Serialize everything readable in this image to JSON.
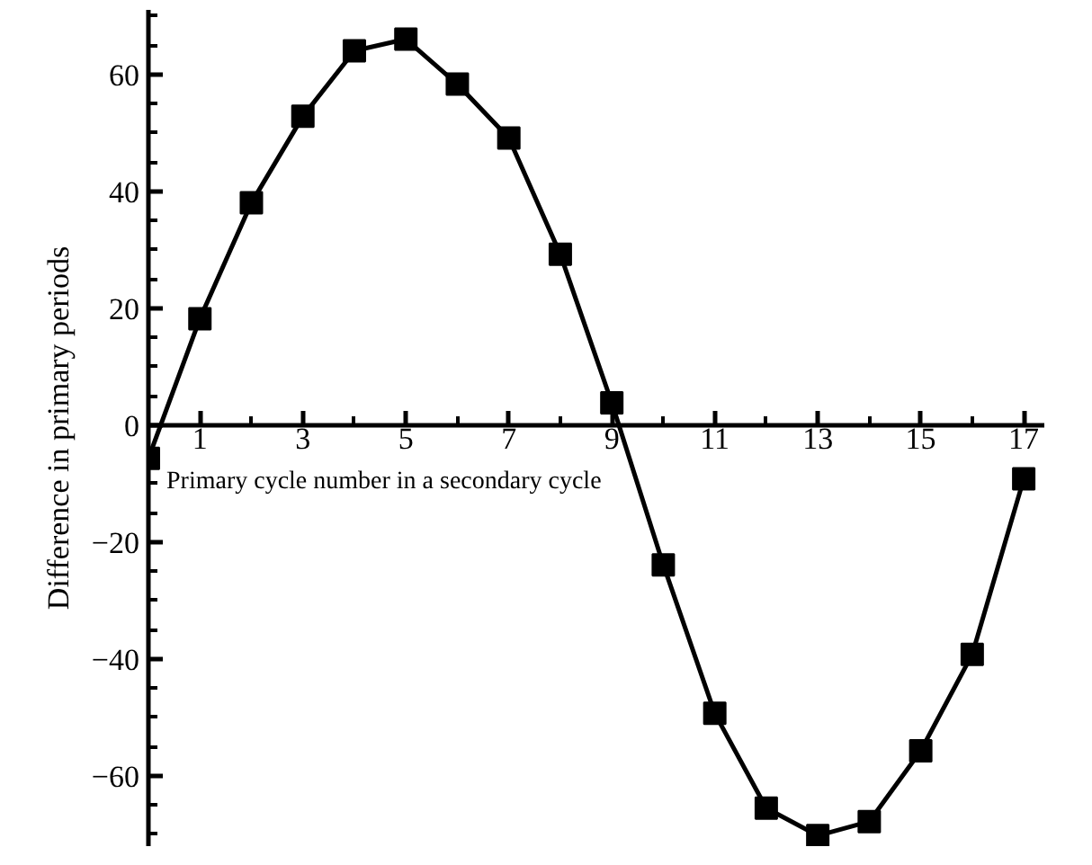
{
  "chart_data": {
    "type": "line",
    "xlabel": "Primary cycle number in a secondary cycle",
    "ylabel": "Difference in primary periods",
    "x": [
      0,
      1,
      2,
      3,
      4,
      5,
      6,
      7,
      8,
      9,
      10,
      11,
      12,
      13,
      14,
      15,
      16,
      17
    ],
    "series": [
      {
        "color": "#000000",
        "values": [
          -5.7,
          18.2,
          38,
          52.8,
          64,
          66,
          58.3,
          49.1,
          29.2,
          3.8,
          -23.9,
          -49.3,
          -65.5,
          -70.2,
          -67.8,
          -55.7,
          -39.2,
          -9.2
        ]
      }
    ],
    "xlim": [
      0,
      17.4
    ],
    "ylim": [
      -72,
      71
    ],
    "xticks": [
      1,
      3,
      5,
      7,
      9,
      11,
      13,
      15,
      17
    ],
    "yticks": [
      -60,
      -40,
      -20,
      0,
      20,
      40,
      60
    ],
    "grid": false,
    "marker": "square",
    "line_style": "solid"
  }
}
